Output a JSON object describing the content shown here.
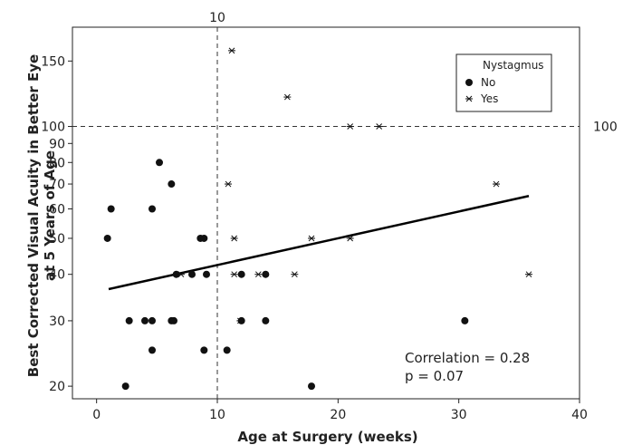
{
  "chart_data": {
    "type": "scatter",
    "xlabel": "Age at Surgery (weeks)",
    "ylabel_lines": [
      "Best Corrected Visual Acuity in Better Eye",
      "at 5 Years of Age"
    ],
    "x_ticks": [
      0,
      10,
      20,
      30,
      40
    ],
    "y_ticks": [
      20,
      30,
      40,
      50,
      60,
      70,
      80,
      90,
      100,
      150
    ],
    "xlim": [
      -2,
      40
    ],
    "ylim": [
      18.5,
      185
    ],
    "y_scale": "log",
    "grid": false,
    "reference_lines": [
      {
        "orientation": "vertical",
        "value": 10,
        "label": "10",
        "style": "dashed"
      },
      {
        "orientation": "horizontal",
        "value": 100,
        "label": "100",
        "style": "dashed"
      }
    ],
    "legend": {
      "title": "Nystagmus",
      "position": "top-right",
      "entries": [
        {
          "label": "No",
          "marker": "filled-circle"
        },
        {
          "label": "Yes",
          "marker": "asterisk"
        }
      ]
    },
    "series": [
      {
        "name": "No",
        "marker": "filled-circle",
        "points": [
          [
            0.9,
            50
          ],
          [
            1.2,
            60
          ],
          [
            2.4,
            20
          ],
          [
            2.7,
            30
          ],
          [
            4,
            30
          ],
          [
            4.6,
            30
          ],
          [
            4.6,
            25
          ],
          [
            4.6,
            60
          ],
          [
            5.2,
            80
          ],
          [
            6.2,
            30
          ],
          [
            6.4,
            30
          ],
          [
            6.2,
            70
          ],
          [
            6.6,
            40
          ],
          [
            7.9,
            40
          ],
          [
            8.6,
            50
          ],
          [
            8.9,
            50
          ],
          [
            8.9,
            25
          ],
          [
            9.1,
            40
          ],
          [
            10.8,
            25
          ],
          [
            12,
            30
          ],
          [
            12,
            40
          ],
          [
            14,
            40
          ],
          [
            14,
            30
          ],
          [
            17.8,
            20
          ],
          [
            30.5,
            30
          ]
        ]
      },
      {
        "name": "Yes",
        "marker": "asterisk",
        "points": [
          [
            7,
            40
          ],
          [
            11.2,
            160
          ],
          [
            10.9,
            70
          ],
          [
            11.4,
            50
          ],
          [
            11.4,
            40
          ],
          [
            11.9,
            30
          ],
          [
            13.4,
            40
          ],
          [
            15.8,
            120
          ],
          [
            16.4,
            40
          ],
          [
            17.8,
            50
          ],
          [
            21,
            100
          ],
          [
            21,
            50
          ],
          [
            23.4,
            100
          ],
          [
            33.1,
            70
          ],
          [
            35.8,
            40
          ]
        ]
      }
    ],
    "trend_line": {
      "x": [
        1,
        35.8
      ],
      "y": [
        36.5,
        65
      ]
    },
    "annotations": [
      "Correlation = 0.28",
      "p = 0.07"
    ]
  }
}
